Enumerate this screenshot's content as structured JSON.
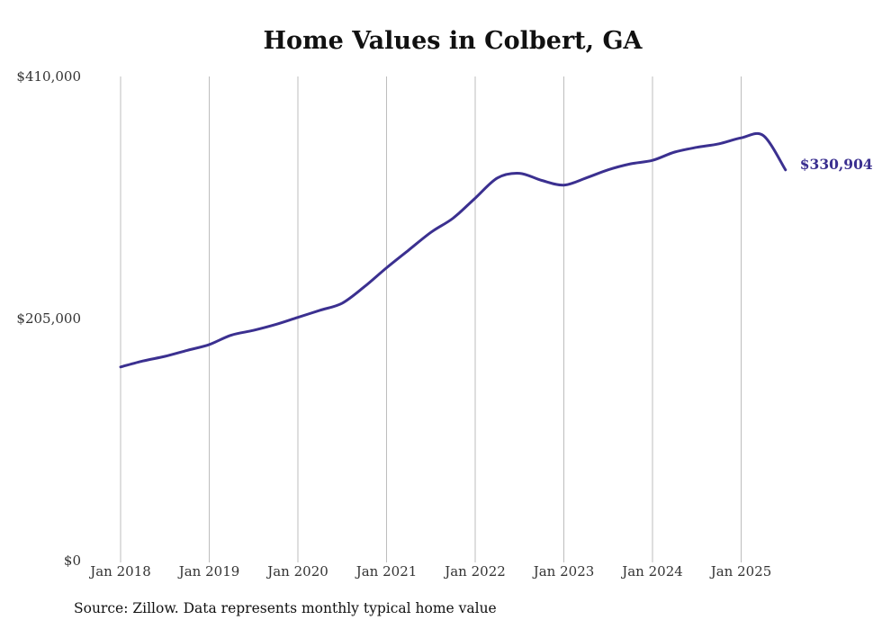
{
  "chart_data": {
    "type": "line",
    "title": "Home Values in Colbert, GA",
    "xlabel": "",
    "ylabel": "",
    "ylim": [
      0,
      410000
    ],
    "y_ticks": [
      "$0",
      "$205,000",
      "$410,000"
    ],
    "y_tick_values": [
      0,
      205000,
      410000
    ],
    "x_tick_labels": [
      "Jan 2018",
      "Jan 2019",
      "Jan 2020",
      "Jan 2021",
      "Jan 2022",
      "Jan 2023",
      "Jan 2024",
      "Jan 2025"
    ],
    "x_tick_dates": [
      "2018-01",
      "2019-01",
      "2020-01",
      "2021-01",
      "2022-01",
      "2023-01",
      "2024-01",
      "2025-01"
    ],
    "xlim": [
      "2018-01",
      "2025-07"
    ],
    "grid": "vertical",
    "series": [
      {
        "color": "#3b3090",
        "x": [
          "2018-01",
          "2018-04",
          "2018-07",
          "2018-10",
          "2019-01",
          "2019-04",
          "2019-07",
          "2019-10",
          "2020-01",
          "2020-04",
          "2020-07",
          "2020-10",
          "2021-01",
          "2021-04",
          "2021-07",
          "2021-10",
          "2022-01",
          "2022-04",
          "2022-07",
          "2022-10",
          "2023-01",
          "2023-04",
          "2023-07",
          "2023-10",
          "2024-01",
          "2024-04",
          "2024-07",
          "2024-10",
          "2025-01",
          "2025-04",
          "2025-07"
        ],
        "values": [
          164000,
          169000,
          173000,
          178000,
          183000,
          191000,
          195000,
          200000,
          206000,
          212000,
          218000,
          232000,
          248000,
          263000,
          278000,
          290000,
          307000,
          324000,
          328000,
          322000,
          318000,
          324000,
          331000,
          336000,
          339000,
          346000,
          350000,
          353000,
          358000,
          360000,
          330904
        ],
        "end_label": "$330,904"
      }
    ]
  },
  "source": "Source: Zillow. Data represents monthly typical home value"
}
